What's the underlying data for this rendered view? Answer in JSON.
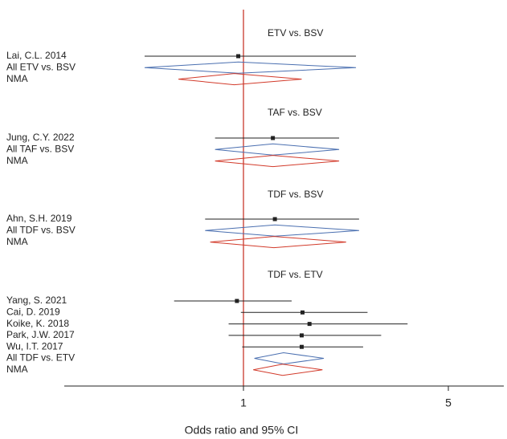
{
  "chart_data": {
    "type": "forest",
    "xlabel": "Odds ratio and 95% CI",
    "x_scale": "log",
    "reference_value": 1,
    "x_ticks": [
      {
        "value": 1,
        "label": "1"
      },
      {
        "value": 5,
        "label": "5"
      }
    ],
    "xlim": [
      0.42,
      8.7
    ],
    "colors": {
      "study": "#222222",
      "pooled_diamond": "#4a6fb0",
      "nma_diamond": "#d23a2a",
      "reference_line": "#c8392c",
      "axis": "#222222"
    },
    "groups": [
      {
        "title": "ETV vs. BSV",
        "rows": [
          {
            "label": "Lai, C.L. 2014",
            "kind": "study",
            "or": 0.96,
            "lo": 0.46,
            "hi": 2.42
          },
          {
            "label": "All ETV vs. BSV",
            "kind": "pooled",
            "or": 0.96,
            "lo": 0.46,
            "hi": 2.42
          },
          {
            "label": "NMA",
            "kind": "nma",
            "or": 0.93,
            "lo": 0.6,
            "hi": 1.58
          }
        ]
      },
      {
        "title": "TAF vs. BSV",
        "rows": [
          {
            "label": "Jung, C.Y. 2022",
            "kind": "study",
            "or": 1.26,
            "lo": 0.8,
            "hi": 2.12
          },
          {
            "label": "All TAF vs. BSV",
            "kind": "pooled",
            "or": 1.26,
            "lo": 0.8,
            "hi": 2.12
          },
          {
            "label": "NMA",
            "kind": "nma",
            "or": 1.26,
            "lo": 0.8,
            "hi": 2.12
          }
        ]
      },
      {
        "title": "TDF vs. BSV",
        "rows": [
          {
            "label": "Ahn, S.H. 2019",
            "kind": "study",
            "or": 1.28,
            "lo": 0.74,
            "hi": 2.48
          },
          {
            "label": "All TDF vs. BSV",
            "kind": "pooled",
            "or": 1.28,
            "lo": 0.74,
            "hi": 2.48
          },
          {
            "label": "NMA",
            "kind": "nma",
            "or": 1.27,
            "lo": 0.77,
            "hi": 2.24
          }
        ]
      },
      {
        "title": "TDF vs. ETV",
        "rows": [
          {
            "label": "Yang, S. 2021",
            "kind": "study",
            "or": 0.95,
            "lo": 0.58,
            "hi": 1.46
          },
          {
            "label": "Cai, D. 2019",
            "kind": "study",
            "or": 1.59,
            "lo": 0.98,
            "hi": 2.65
          },
          {
            "label": "Koike, K. 2018",
            "kind": "study",
            "or": 1.68,
            "lo": 0.89,
            "hi": 3.63
          },
          {
            "label": "Park, J.W. 2017",
            "kind": "study",
            "or": 1.58,
            "lo": 0.89,
            "hi": 2.95
          },
          {
            "label": "Wu, I.T. 2017",
            "kind": "study",
            "or": 1.58,
            "lo": 0.99,
            "hi": 2.56
          },
          {
            "label": "All TDF vs. ETV",
            "kind": "pooled",
            "or": 1.37,
            "lo": 1.09,
            "hi": 1.88
          },
          {
            "label": "NMA",
            "kind": "nma",
            "or": 1.36,
            "lo": 1.08,
            "hi": 1.86
          }
        ]
      }
    ]
  }
}
